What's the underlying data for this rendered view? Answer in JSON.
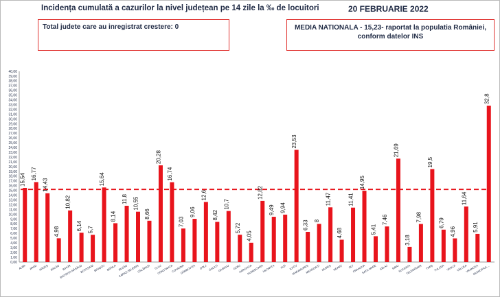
{
  "header": {
    "title": "Incidența cumulată a cazurilor la nivel județean pe 14 zile la ‰ de locuitori",
    "date": "20 FEBRUARIE 2022"
  },
  "notes": {
    "left": "Total judete care au inregistrat crestere: 0",
    "right_line1": "MEDIA NATIONALA - 15,23-  raportat la populatia României,",
    "right_line2": "conform datelor INS"
  },
  "colors": {
    "bar": "#e8141c",
    "average_line": "#e8141c",
    "text": "#1f2a44",
    "box_border": "#e0302e"
  },
  "chart_data": {
    "type": "bar",
    "categories": [
      "ALBA",
      "ARAD",
      "ARGEȘ",
      "BACĂU",
      "BIHOR",
      "BISTRIȚA-NĂSĂUD",
      "BOTOȘANI",
      "BRAȘOV",
      "BRĂILA",
      "BUZĂU",
      "CARAȘ-SEVERIN",
      "CĂLĂRAȘI",
      "CLUJ",
      "CONSTANȚA",
      "COVASNA",
      "DÂMBOVIȚA",
      "DOLJ",
      "GALAȚI",
      "GIURGIU",
      "GORJ",
      "HARGHITA",
      "HUNEDOARA",
      "IALOMIȚA",
      "IAȘI",
      "ILFOV",
      "MARAMUREȘ",
      "MEHEDINȚI",
      "MUREȘ",
      "NEAMȚ",
      "OLT",
      "PRAHOVA",
      "SATU MARE",
      "SĂLAJ",
      "SIBIU",
      "SUCEAVA",
      "TELEORMAN",
      "TIMIȘ",
      "TULCEA",
      "VASLUI",
      "VÂLCEA",
      "VRANCEA",
      "MUNICIPIUL..."
    ],
    "values": [
      15.54,
      16.77,
      14.43,
      4.98,
      10.82,
      6.14,
      5.7,
      15.64,
      8.14,
      11.8,
      10.55,
      8.66,
      20.28,
      16.74,
      7.03,
      9.06,
      12.6,
      8.42,
      10.7,
      5.72,
      4.05,
      12.82,
      9.49,
      9.94,
      23.53,
      6.33,
      8,
      11.47,
      4.68,
      11.41,
      14.95,
      5.41,
      7.46,
      21.69,
      3.18,
      7.98,
      19.5,
      6.79,
      4.96,
      11.64,
      5.91,
      32.8
    ],
    "value_labels": [
      "15,54",
      "16,77",
      "14,43",
      "4,98",
      "10,82",
      "6,14",
      "5,7",
      "15,64",
      "8,14",
      "11,8",
      "10,55",
      "8,66",
      "20,28",
      "16,74",
      "7,03",
      "9,06",
      "12,6",
      "8,42",
      "10,7",
      "5,72",
      "4,05",
      "12,82",
      "9,49",
      "9,94",
      "23,53",
      "6,33",
      "8",
      "11,47",
      "4,68",
      "11,41",
      "14,95",
      "5,41",
      "7,46",
      "21,69",
      "3,18",
      "7,98",
      "19,5",
      "6,79",
      "4,96",
      "11,64",
      "5,91",
      "32,8"
    ],
    "average": 15.23,
    "ylim": [
      0,
      40
    ],
    "ytick_step": 1,
    "ytick_labels": [
      "0,00",
      "1,00",
      "2,00",
      "3,00",
      "4,00",
      "5,00",
      "6,00",
      "7,00",
      "8,00",
      "9,00",
      "10,00",
      "11,00",
      "12,00",
      "13,00",
      "14,00",
      "15,00",
      "16,00",
      "17,00",
      "18,00",
      "19,00",
      "20,00",
      "21,00",
      "22,00",
      "23,00",
      "24,00",
      "25,00",
      "26,00",
      "27,00",
      "28,00",
      "29,00",
      "30,00",
      "31,00",
      "32,00",
      "33,00",
      "34,00",
      "35,00",
      "36,00",
      "37,00",
      "38,00",
      "39,00",
      "40,00"
    ],
    "grid": false,
    "legend": "none"
  }
}
